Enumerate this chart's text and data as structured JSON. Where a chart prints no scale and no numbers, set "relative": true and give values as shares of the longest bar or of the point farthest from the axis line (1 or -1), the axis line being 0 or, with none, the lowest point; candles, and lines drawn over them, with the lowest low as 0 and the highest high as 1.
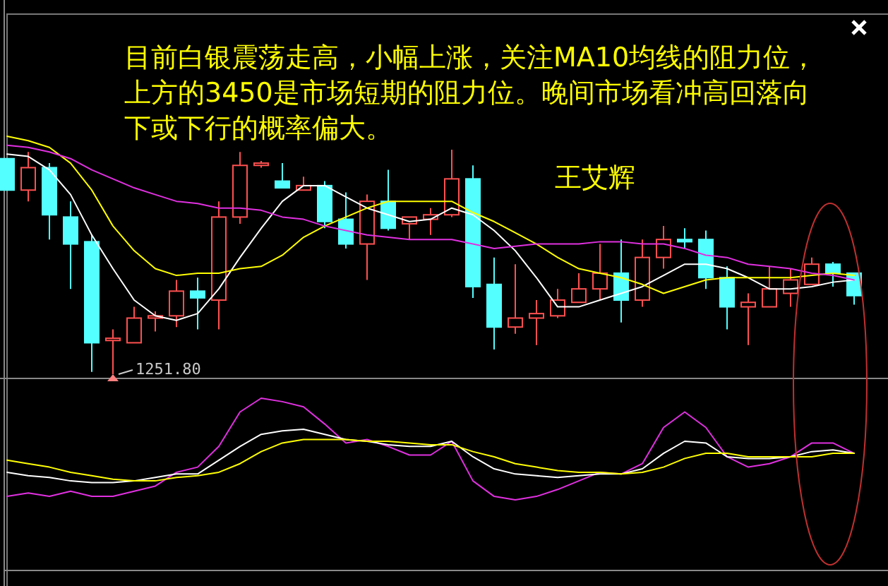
{
  "chart_data": [
    {
      "type": "candlestick",
      "relative": true,
      "categories": [
        null,
        null,
        null,
        null,
        null,
        null,
        null,
        null,
        null,
        null,
        null,
        null,
        null,
        null,
        null,
        null,
        null,
        null,
        null,
        null,
        null,
        null,
        null,
        null,
        null,
        null,
        null,
        null,
        null,
        null,
        null,
        null,
        null,
        null,
        null,
        null,
        null,
        null,
        null,
        null,
        null
      ],
      "ohlc": [
        [
          0.96,
          0.96,
          0.82,
          0.82
        ],
        [
          0.82,
          0.99,
          0.77,
          0.92
        ],
        [
          0.92,
          0.94,
          0.6,
          0.71
        ],
        [
          0.7,
          0.77,
          0.38,
          0.58
        ],
        [
          0.59,
          0.62,
          0.01,
          0.14
        ],
        [
          0.15,
          0.2,
          0,
          0.16
        ],
        [
          0.14,
          0.3,
          0.14,
          0.25
        ],
        [
          0.25,
          0.28,
          0.19,
          0.26
        ],
        [
          0.26,
          0.42,
          0.21,
          0.37
        ],
        [
          0.37,
          0.43,
          0.2,
          0.34
        ],
        [
          0.33,
          0.77,
          0.2,
          0.7
        ],
        [
          0.7,
          0.99,
          0.67,
          0.93
        ],
        [
          0.93,
          0.95,
          0.92,
          0.94
        ],
        [
          0.86,
          0.94,
          0.83,
          0.83
        ],
        [
          0.82,
          0.88,
          0.82,
          0.84
        ],
        [
          0.84,
          0.86,
          0.65,
          0.68
        ],
        [
          0.69,
          0.81,
          0.56,
          0.58
        ],
        [
          0.58,
          0.8,
          0.42,
          0.77
        ],
        [
          0.77,
          0.91,
          0.64,
          0.65
        ],
        [
          0.67,
          0.7,
          0.6,
          0.7
        ],
        [
          0.69,
          0.74,
          0.62,
          0.71
        ],
        [
          0.71,
          1,
          0.7,
          0.87
        ],
        [
          0.87,
          0.93,
          0.34,
          0.39
        ],
        [
          0.4,
          0.52,
          0.11,
          0.21
        ],
        [
          0.21,
          0.49,
          0.18,
          0.25
        ],
        [
          0.25,
          0.33,
          0.13,
          0.27
        ],
        [
          0.26,
          0.38,
          0.25,
          0.33
        ],
        [
          0.32,
          0.45,
          0.32,
          0.38
        ],
        [
          0.38,
          0.58,
          0.33,
          0.45
        ],
        [
          0.45,
          0.6,
          0.23,
          0.33
        ],
        [
          0.33,
          0.6,
          0.3,
          0.52
        ],
        [
          0.52,
          0.66,
          0.47,
          0.6
        ],
        [
          0.6,
          0.65,
          0.56,
          0.59
        ],
        [
          0.6,
          0.64,
          0.38,
          0.43
        ],
        [
          0.43,
          0.48,
          0.2,
          0.3
        ],
        [
          0.3,
          0.36,
          0.13,
          0.32
        ],
        [
          0.3,
          0.48,
          0.3,
          0.38
        ],
        [
          0.36,
          0.47,
          0.3,
          0.42
        ],
        [
          0.4,
          0.52,
          0.4,
          0.49
        ],
        [
          0.49,
          0.5,
          0.39,
          0.45
        ],
        [
          0.45,
          0.45,
          0.31,
          0.35
        ]
      ],
      "colors": [
        "#54ffff",
        "#ff5050",
        "#54ffff",
        "#54ffff",
        "#54ffff",
        "#ff5050",
        "#ff5050",
        "#ff5050",
        "#ff5050",
        "#54ffff",
        "#ff5050",
        "#ff5050",
        "#ff5050",
        "#54ffff",
        "#ff5050",
        "#54ffff",
        "#54ffff",
        "#ff5050",
        "#54ffff",
        "#ff5050",
        "#ff5050",
        "#ff5050",
        "#54ffff",
        "#54ffff",
        "#ff5050",
        "#ff5050",
        "#ff5050",
        "#ff5050",
        "#ff5050",
        "#54ffff",
        "#ff5050",
        "#ff5050",
        "#54ffff",
        "#54ffff",
        "#54ffff",
        "#ff5050",
        "#ff5050",
        "#ff5050",
        "#ff5050",
        "#54ffff",
        "#54ffff"
      ],
      "series": [
        {
          "type": "line",
          "color": "#ffffff",
          "values": [
            0.98,
            0.97,
            0.91,
            0.8,
            0.62,
            0.47,
            0.33,
            0.26,
            0.24,
            0.27,
            0.38,
            0.52,
            0.65,
            0.77,
            0.84,
            0.84,
            0.79,
            0.74,
            0.71,
            0.68,
            0.69,
            0.74,
            0.71,
            0.64,
            0.55,
            0.43,
            0.3,
            0.3,
            0.33,
            0.36,
            0.39,
            0.44,
            0.49,
            0.49,
            0.47,
            0.43,
            0.38,
            0.38,
            0.39,
            0.41,
            0.42
          ]
        },
        {
          "type": "line",
          "color": "#ffff00",
          "values": [
            1.06,
            1.04,
            1.01,
            0.94,
            0.82,
            0.66,
            0.55,
            0.47,
            0.44,
            0.45,
            0.45,
            0.47,
            0.48,
            0.53,
            0.61,
            0.66,
            0.7,
            0.74,
            0.77,
            0.77,
            0.77,
            0.77,
            0.72,
            0.68,
            0.63,
            0.58,
            0.52,
            0.47,
            0.45,
            0.43,
            0.4,
            0.36,
            0.39,
            0.42,
            0.43,
            0.43,
            0.43,
            0.43,
            0.44,
            0.45,
            0.44
          ]
        },
        {
          "type": "line",
          "color": "#e030e0",
          "values": [
            1.02,
            1.01,
            0.99,
            0.96,
            0.91,
            0.87,
            0.83,
            0.8,
            0.77,
            0.76,
            0.74,
            0.74,
            0.73,
            0.7,
            0.69,
            0.66,
            0.64,
            0.62,
            0.61,
            0.6,
            0.6,
            0.6,
            0.58,
            0.56,
            0.57,
            0.58,
            0.58,
            0.58,
            0.59,
            0.59,
            0.58,
            0.58,
            0.56,
            0.53,
            0.52,
            0.49,
            0.48,
            0.47,
            0.45,
            0.44,
            0.42
          ]
        }
      ],
      "annotations": [
        "目前白银震荡走高，小幅上涨，关注MA10均线的阻力位，上方的3450是市场短期的阻力位。晚间市场看冲高回落向下或下行的概率偏大。",
        "王艾辉",
        "1251.80"
      ]
    },
    {
      "type": "line",
      "relative": true,
      "categories": [
        null,
        null,
        null,
        null,
        null,
        null,
        null,
        null,
        null,
        null,
        null,
        null,
        null,
        null,
        null,
        null,
        null,
        null,
        null,
        null,
        null,
        null,
        null,
        null,
        null,
        null,
        null,
        null,
        null,
        null,
        null,
        null,
        null,
        null,
        null,
        null,
        null,
        null,
        null,
        null,
        null
      ],
      "series": [
        {
          "color": "#e030e0",
          "values": [
            0.43,
            0.45,
            0.43,
            0.46,
            0.43,
            0.43,
            0.46,
            0.49,
            0.57,
            0.6,
            0.72,
            0.92,
            1,
            0.98,
            0.95,
            0.85,
            0.74,
            0.76,
            0.72,
            0.67,
            0.67,
            0.75,
            0.52,
            0.43,
            0.41,
            0.43,
            0.47,
            0.52,
            0.57,
            0.56,
            0.62,
            0.83,
            0.92,
            0.83,
            0.66,
            0.6,
            0.62,
            0.66,
            0.74,
            0.74,
            0.68
          ]
        },
        {
          "color": "#ffffff",
          "values": [
            0.57,
            0.55,
            0.54,
            0.52,
            0.51,
            0.51,
            0.52,
            0.54,
            0.56,
            0.56,
            0.64,
            0.72,
            0.79,
            0.81,
            0.82,
            0.79,
            0.76,
            0.75,
            0.73,
            0.72,
            0.72,
            0.75,
            0.66,
            0.59,
            0.56,
            0.55,
            0.54,
            0.55,
            0.56,
            0.56,
            0.59,
            0.68,
            0.75,
            0.74,
            0.66,
            0.65,
            0.65,
            0.66,
            0.69,
            0.7,
            0.68
          ]
        },
        {
          "color": "#ffff00",
          "values": [
            0.64,
            0.62,
            0.6,
            0.57,
            0.55,
            0.53,
            0.52,
            0.52,
            0.54,
            0.55,
            0.57,
            0.62,
            0.69,
            0.74,
            0.76,
            0.76,
            0.76,
            0.75,
            0.75,
            0.74,
            0.73,
            0.73,
            0.69,
            0.66,
            0.62,
            0.6,
            0.58,
            0.57,
            0.57,
            0.56,
            0.57,
            0.6,
            0.65,
            0.68,
            0.68,
            0.66,
            0.66,
            0.66,
            0.66,
            0.68,
            0.68
          ]
        }
      ]
    }
  ]
}
